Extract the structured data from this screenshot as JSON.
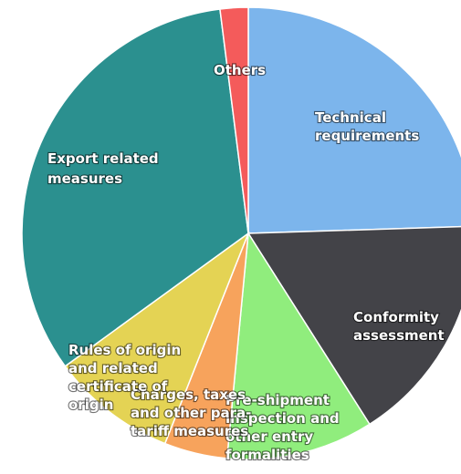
{
  "chart_data": {
    "type": "pie",
    "title": "",
    "slices": [
      {
        "label": "Technical requirements",
        "lines": [
          "Technical",
          "requirements"
        ],
        "value": 24.5,
        "color": "#7cb5ec"
      },
      {
        "label": "Conformity assessment",
        "lines": [
          "Conformity",
          "assessment"
        ],
        "value": 16.5,
        "color": "#434348"
      },
      {
        "label": "Pre-shipment inspection and other entry formalities",
        "lines": [
          "Pre-shipment",
          "inspection and",
          "other entry",
          "formalities"
        ],
        "value": 10.5,
        "color": "#90ed7d"
      },
      {
        "label": "Charges, taxes and other para-tariff measures",
        "lines": [
          "Charges, taxes",
          "and other para-",
          "tariff measures"
        ],
        "value": 4.5,
        "color": "#f7a35c"
      },
      {
        "label": "Rules of origin and related certificate of origin",
        "lines": [
          "Rules of origin",
          "and related",
          "certificate of",
          "origin"
        ],
        "value": 9.0,
        "color": "#e4d354"
      },
      {
        "label": "Export related measures",
        "lines": [
          "Export related",
          "measures"
        ],
        "value": 33.0,
        "color": "#2b908f"
      },
      {
        "label": "Others",
        "lines": [
          "Others"
        ],
        "value": 2.0,
        "color": "#f45b5b"
      }
    ]
  }
}
